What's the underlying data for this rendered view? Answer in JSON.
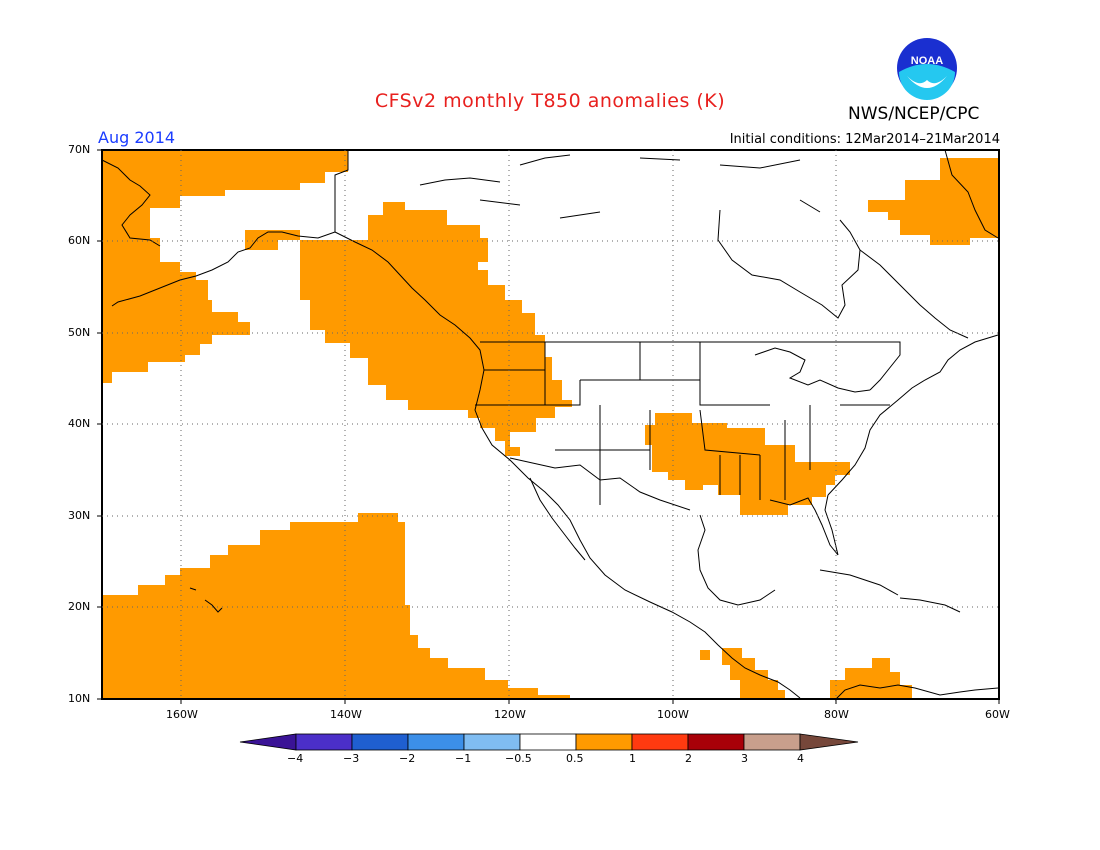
{
  "header": {
    "title": "CFSv2 monthly T850 anomalies (K)",
    "month": "Aug 2014",
    "initial_conditions": "Initial conditions: 12Mar2014–21Mar2014",
    "agency": "NWS/NCEP/CPC",
    "logo_text": "NOAA"
  },
  "axes": {
    "lat_labels": [
      "70N",
      "60N",
      "50N",
      "40N",
      "30N",
      "20N",
      "10N"
    ],
    "lon_labels": [
      "160W",
      "140W",
      "120W",
      "100W",
      "80W",
      "60W"
    ]
  },
  "colorbar": {
    "labels": [
      "−4",
      "−3",
      "−2",
      "−1",
      "−0.5",
      "0.5",
      "1",
      "2",
      "3",
      "4"
    ],
    "colors": {
      "lt_neg4": "#3a1396",
      "neg4_neg3": "#4b2fc8",
      "neg3_neg2": "#1f5fd0",
      "neg2_neg1": "#3c8fe8",
      "neg1_neg05": "#80bdf2",
      "neutral": "#ffffff",
      "p05_1": "#ff9a00",
      "p1_2": "#ff3a10",
      "p2_3": "#a80008",
      "p3_4": "#c89f8c",
      "gt4": "#76473a"
    }
  },
  "colors": {
    "anomaly_fill": "#ff9a00",
    "title": "#e8201e",
    "month": "#1a3cff"
  }
}
